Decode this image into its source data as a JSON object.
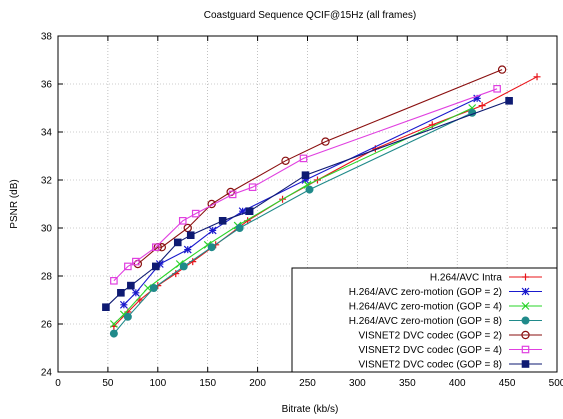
{
  "chart_data": {
    "type": "line",
    "title": "Coastguard Sequence QCIF@15Hz (all frames)",
    "xlabel": "Bitrate (kb/s)",
    "ylabel": "PSNR (dB)",
    "xlim": [
      0,
      500
    ],
    "ylim": [
      24,
      38
    ],
    "xticks": [
      0,
      50,
      100,
      150,
      200,
      250,
      300,
      350,
      400,
      450,
      500
    ],
    "yticks": [
      24,
      26,
      28,
      30,
      32,
      34,
      36,
      38
    ],
    "grid": true,
    "legend_position": "bottom-right",
    "series": [
      {
        "name": "H.264/AVC Intra",
        "color": "#e8141a",
        "marker": "plus",
        "x": [
          56,
          70,
          82,
          100,
          118,
          135,
          158,
          190,
          225,
          260,
          318,
          375,
          425,
          480
        ],
        "y": [
          25.9,
          26.5,
          27.0,
          27.6,
          28.1,
          28.6,
          29.3,
          30.3,
          31.2,
          32.0,
          33.3,
          34.3,
          35.1,
          36.3
        ]
      },
      {
        "name": "H.264/AVC zero-motion (GOP = 2)",
        "color": "#1a1acd",
        "marker": "star",
        "x": [
          66,
          78,
          102,
          130,
          155,
          185,
          248,
          420
        ],
        "y": [
          26.8,
          27.3,
          28.5,
          29.1,
          29.9,
          30.7,
          32.0,
          35.4
        ]
      },
      {
        "name": "H.264/AVC zero-motion (GOP = 4)",
        "color": "#2ad42a",
        "marker": "x",
        "x": [
          56,
          66,
          90,
          122,
          150,
          180,
          250,
          415
        ],
        "y": [
          26.0,
          26.4,
          27.5,
          28.5,
          29.3,
          30.1,
          31.8,
          35.0
        ]
      },
      {
        "name": "H.264/AVC zero-motion (GOP = 8)",
        "color": "#208a8a",
        "marker": "circle-filled",
        "x": [
          56,
          70,
          96,
          126,
          154,
          182,
          252,
          415
        ],
        "y": [
          25.6,
          26.3,
          27.5,
          28.4,
          29.2,
          30.0,
          31.6,
          34.8
        ]
      },
      {
        "name": "VISNET2 DVC codec (GOP = 2)",
        "color": "#8a0f0f",
        "marker": "circle-open",
        "x": [
          80,
          100,
          104,
          130,
          154,
          173,
          228,
          268,
          445
        ],
        "y": [
          28.5,
          29.2,
          29.2,
          30.0,
          31.0,
          31.5,
          32.8,
          33.6,
          36.6
        ]
      },
      {
        "name": "VISNET2 DVC codec (GOP = 4)",
        "color": "#e040e0",
        "marker": "square-open",
        "x": [
          56,
          70,
          78,
          98,
          125,
          138,
          175,
          195,
          246,
          440
        ],
        "y": [
          27.8,
          28.4,
          28.6,
          29.2,
          30.3,
          30.6,
          31.4,
          31.7,
          32.9,
          35.8
        ]
      },
      {
        "name": "VISNET2 DVC codec (GOP = 8)",
        "color": "#0e1a72",
        "marker": "square-filled",
        "x": [
          48,
          63,
          73,
          98,
          120,
          133,
          165,
          192,
          248,
          452
        ],
        "y": [
          26.7,
          27.3,
          27.6,
          28.4,
          29.4,
          29.7,
          30.3,
          30.7,
          32.2,
          35.3
        ]
      }
    ]
  }
}
